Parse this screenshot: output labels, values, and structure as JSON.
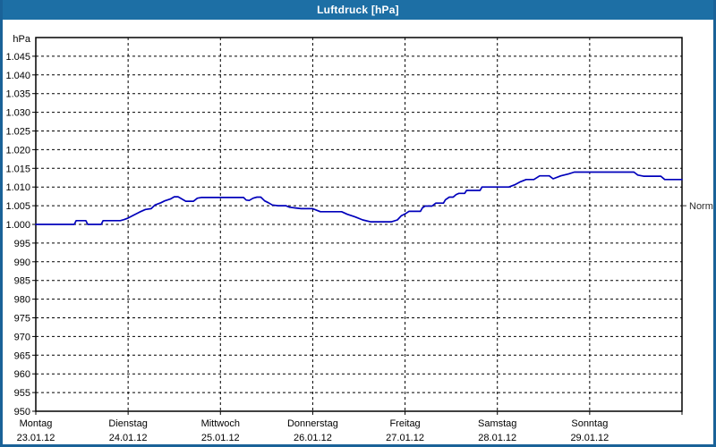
{
  "window": {
    "title": "Luftdruck [hPa]"
  },
  "colors": {
    "titlebar": "#1d6fa5",
    "titlebar_text": "#ffffff",
    "window_border": "#1a6298",
    "plot_background": "#ffffff",
    "plot_border": "#000000",
    "gridline": "#000000",
    "axis_text": "#000000",
    "normal_text": "#2b2b2b",
    "series_line": "#0000bb"
  },
  "chart_data": {
    "type": "line",
    "title": "Luftdruck [hPa]",
    "ylabel": "hPa",
    "ylim": [
      950,
      1050
    ],
    "xlim_hours": [
      0,
      168
    ],
    "grid": "dashed",
    "legend_position": "none",
    "y_ticks": [
      {
        "value": 1045,
        "label": "1.045"
      },
      {
        "value": 1040,
        "label": "1.040"
      },
      {
        "value": 1035,
        "label": "1.035"
      },
      {
        "value": 1030,
        "label": "1.030"
      },
      {
        "value": 1025,
        "label": "1.025"
      },
      {
        "value": 1020,
        "label": "1.020"
      },
      {
        "value": 1015,
        "label": "1.015"
      },
      {
        "value": 1010,
        "label": "1.010"
      },
      {
        "value": 1005,
        "label": "1.005"
      },
      {
        "value": 1000,
        "label": "1.000"
      },
      {
        "value": 995,
        "label": "995"
      },
      {
        "value": 990,
        "label": "990"
      },
      {
        "value": 985,
        "label": "985"
      },
      {
        "value": 980,
        "label": "980"
      },
      {
        "value": 975,
        "label": "975"
      },
      {
        "value": 970,
        "label": "970"
      },
      {
        "value": 965,
        "label": "965"
      },
      {
        "value": 960,
        "label": "960"
      },
      {
        "value": 955,
        "label": "955"
      },
      {
        "value": 950,
        "label": "950"
      }
    ],
    "x_days": [
      {
        "name": "Montag",
        "date": "23.01.12"
      },
      {
        "name": "Dienstag",
        "date": "24.01.12"
      },
      {
        "name": "Mittwoch",
        "date": "25.01.12"
      },
      {
        "name": "Donnerstag",
        "date": "26.01.12"
      },
      {
        "name": "Freitag",
        "date": "27.01.12"
      },
      {
        "name": "Samstag",
        "date": "28.01.12"
      },
      {
        "name": "Sonntag",
        "date": "29.01.12"
      }
    ],
    "normal_marker": {
      "label": "Normal",
      "value": 1005
    },
    "series": [
      {
        "name": "Luftdruck",
        "color": "#0000bb",
        "points_hours_hpa": [
          [
            0,
            1000
          ],
          [
            4,
            1000
          ],
          [
            8,
            1000
          ],
          [
            10,
            1000
          ],
          [
            10.5,
            1001
          ],
          [
            13,
            1001
          ],
          [
            13.5,
            1000
          ],
          [
            17,
            1000
          ],
          [
            17.5,
            1001
          ],
          [
            22,
            1001
          ],
          [
            23,
            1001.3
          ],
          [
            24,
            1001.7
          ],
          [
            25.5,
            1002.5
          ],
          [
            27,
            1003.3
          ],
          [
            28.5,
            1004
          ],
          [
            30,
            1004.2
          ],
          [
            31,
            1005.2
          ],
          [
            32.5,
            1005.8
          ],
          [
            33.5,
            1006.3
          ],
          [
            35,
            1006.8
          ],
          [
            36,
            1007.4
          ],
          [
            37,
            1007.4
          ],
          [
            38,
            1006.8
          ],
          [
            39,
            1006.2
          ],
          [
            41,
            1006.2
          ],
          [
            42,
            1007
          ],
          [
            43,
            1007.2
          ],
          [
            48,
            1007.2
          ],
          [
            54,
            1007.2
          ],
          [
            54.7,
            1006.5
          ],
          [
            55.5,
            1006.4
          ],
          [
            56.5,
            1007
          ],
          [
            57.5,
            1007.3
          ],
          [
            58.5,
            1007.3
          ],
          [
            59.5,
            1006.3
          ],
          [
            60.5,
            1005.8
          ],
          [
            61.5,
            1005.2
          ],
          [
            63,
            1005
          ],
          [
            65,
            1005
          ],
          [
            66,
            1004.6
          ],
          [
            67.5,
            1004.4
          ],
          [
            69,
            1004.2
          ],
          [
            72,
            1004.2
          ],
          [
            74,
            1003.4
          ],
          [
            79.5,
            1003.4
          ],
          [
            81,
            1002.7
          ],
          [
            83,
            1002
          ],
          [
            85,
            1001.2
          ],
          [
            87,
            1000.7
          ],
          [
            92.5,
            1000.7
          ],
          [
            94,
            1001.2
          ],
          [
            95,
            1002.3
          ],
          [
            96,
            1002.8
          ],
          [
            97,
            1003.5
          ],
          [
            100,
            1003.5
          ],
          [
            100.5,
            1004.4
          ],
          [
            101.2,
            1004.9
          ],
          [
            103,
            1004.9
          ],
          [
            104,
            1005.7
          ],
          [
            106,
            1005.7
          ],
          [
            106.5,
            1006.6
          ],
          [
            107.5,
            1007.3
          ],
          [
            108.5,
            1007.3
          ],
          [
            109.3,
            1008
          ],
          [
            110,
            1008.3
          ],
          [
            111.5,
            1008.3
          ],
          [
            112,
            1009.1
          ],
          [
            115.5,
            1009.1
          ],
          [
            116,
            1010
          ],
          [
            120,
            1010
          ],
          [
            123,
            1010
          ],
          [
            124.5,
            1010.6
          ],
          [
            126,
            1011.4
          ],
          [
            127.5,
            1012
          ],
          [
            129.5,
            1012
          ],
          [
            131,
            1013
          ],
          [
            133.5,
            1013
          ],
          [
            134.5,
            1012.2
          ],
          [
            136.5,
            1013
          ],
          [
            138.5,
            1013.5
          ],
          [
            140,
            1014
          ],
          [
            144,
            1014
          ],
          [
            150,
            1014
          ],
          [
            155.5,
            1014
          ],
          [
            156.5,
            1013.2
          ],
          [
            158,
            1012.9
          ],
          [
            162.5,
            1012.9
          ],
          [
            163.5,
            1012
          ],
          [
            168,
            1012
          ]
        ]
      }
    ]
  }
}
